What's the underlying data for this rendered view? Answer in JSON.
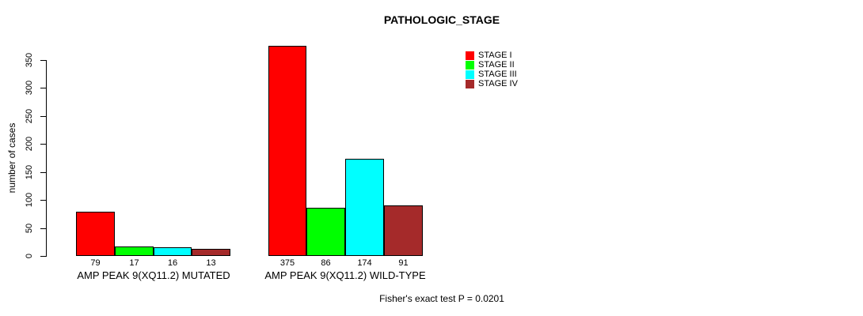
{
  "chart_data": {
    "type": "bar",
    "title": "PATHOLOGIC_STAGE",
    "xlabel": "",
    "ylabel": "number of cases",
    "ylim": [
      0,
      350
    ],
    "yticks": [
      0,
      50,
      100,
      150,
      200,
      250,
      300,
      350
    ],
    "grid": false,
    "legend_position": "top-right",
    "categories": [
      "AMP PEAK 9(XQ11.2) MUTATED",
      "AMP PEAK 9(XQ11.2) WILD-TYPE"
    ],
    "series": [
      {
        "name": "STAGE I",
        "color": "#FF0000",
        "values": [
          79,
          375
        ]
      },
      {
        "name": "STAGE II",
        "color": "#00FF00",
        "values": [
          17,
          86
        ]
      },
      {
        "name": "STAGE III",
        "color": "#00FFFF",
        "values": [
          16,
          174
        ]
      },
      {
        "name": "STAGE IV",
        "color": "#A52A2A",
        "values": [
          13,
          91
        ]
      }
    ],
    "show_value_labels": true,
    "annotation": "Fisher's exact test P = 0.0201"
  },
  "colors": {
    "background": "#FFFFFF",
    "axis": "#000000",
    "bar_border": "#000000",
    "text": "#000000"
  }
}
